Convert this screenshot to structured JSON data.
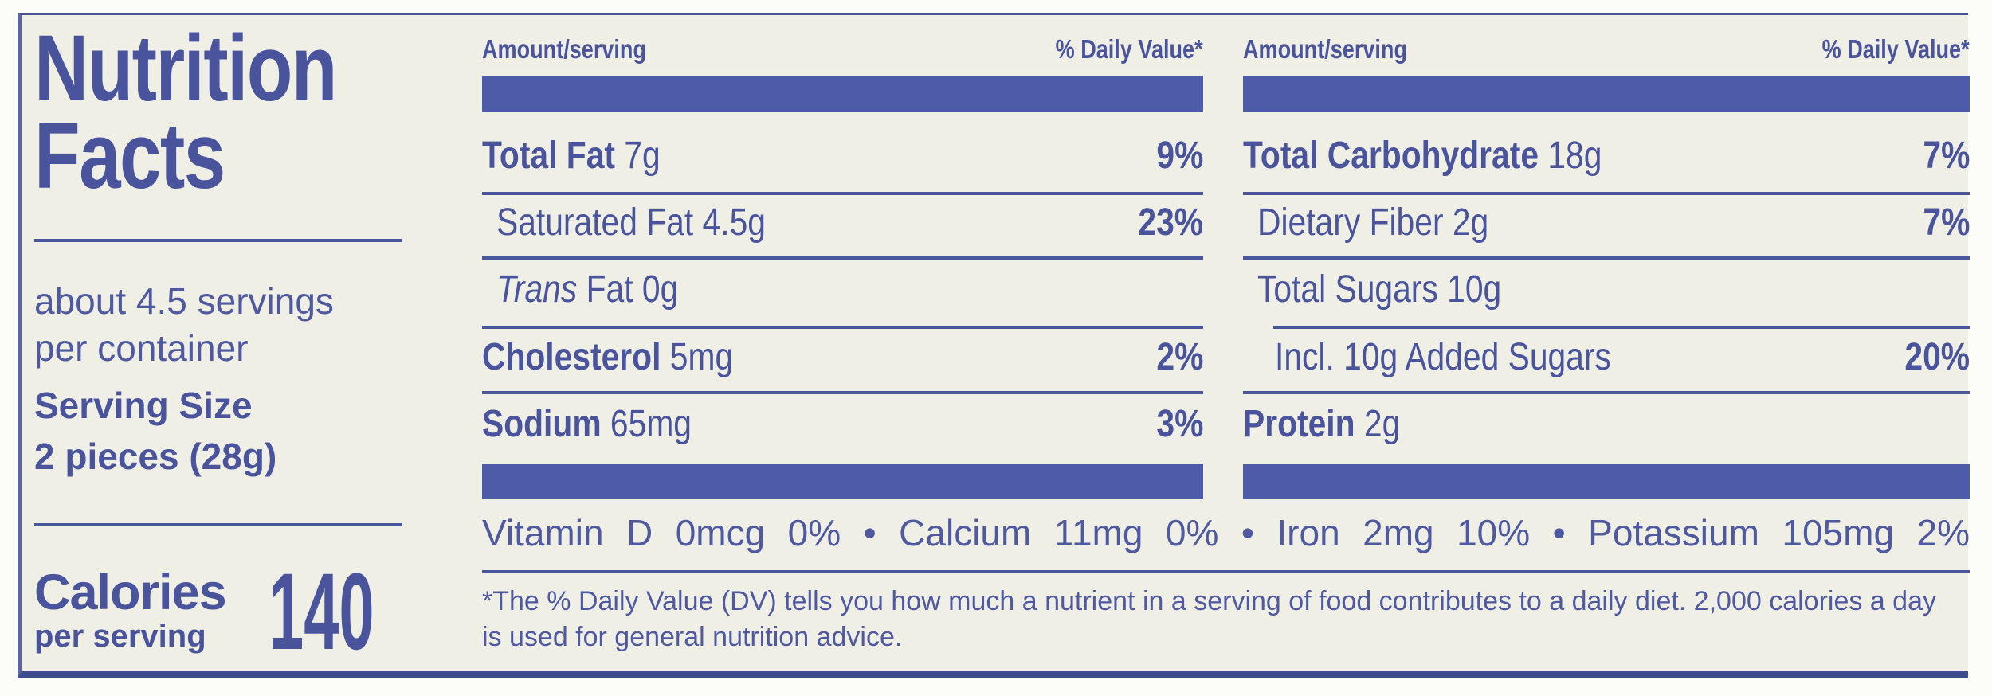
{
  "label": {
    "title": {
      "line1": "Nutrition",
      "line2": "Facts"
    },
    "serving": {
      "servings_line1": "about 4.5 servings",
      "servings_line2": "per container",
      "serving_size_label": "Serving Size",
      "serving_size_value": "2 pieces (28g)"
    },
    "calories": {
      "label": "Calories",
      "sublabel": "per serving",
      "value": "140"
    },
    "columns": [
      {
        "amount_header": "Amount/serving",
        "dv_header": "% Daily Value*",
        "rows": [
          {
            "bold": "Total Fat",
            "text": " 7g",
            "dv": "9%"
          },
          {
            "text": "Saturated Fat 4.5g",
            "dv": "23%"
          },
          {
            "italic": "Trans",
            "text": " Fat 0g",
            "dv": ""
          },
          {
            "bold": "Cholesterol",
            "text": " 5mg",
            "dv": "2%"
          },
          {
            "bold": "Sodium",
            "text": " 65mg",
            "dv": "3%"
          }
        ]
      },
      {
        "amount_header": "Amount/serving",
        "dv_header": "% Daily Value*",
        "rows": [
          {
            "bold": "Total Carbohydrate",
            "text": " 18g",
            "dv": "7%"
          },
          {
            "text": "Dietary Fiber 2g",
            "dv": "7%"
          },
          {
            "text": "Total Sugars 10g",
            "dv": ""
          },
          {
            "text": "Incl. 10g Added Sugars",
            "dv": "20%"
          },
          {
            "bold": "Protein",
            "text": " 2g",
            "dv": ""
          }
        ]
      }
    ],
    "micronutrients": "Vitamin D 0mcg 0% • Calcium 11mg 0% • Iron 2mg 10% • Potassium 105mg 2%",
    "footnote": "*The % Daily Value (DV) tells you how much a nutrient in a serving of food contributes to a daily diet. 2,000 calories a day is used for general nutrition advice."
  },
  "colors": {
    "accent_text": "#4a549c",
    "bar": "#4e5ba8",
    "separator": "#4a569b",
    "label_background": "#f0efe6"
  }
}
